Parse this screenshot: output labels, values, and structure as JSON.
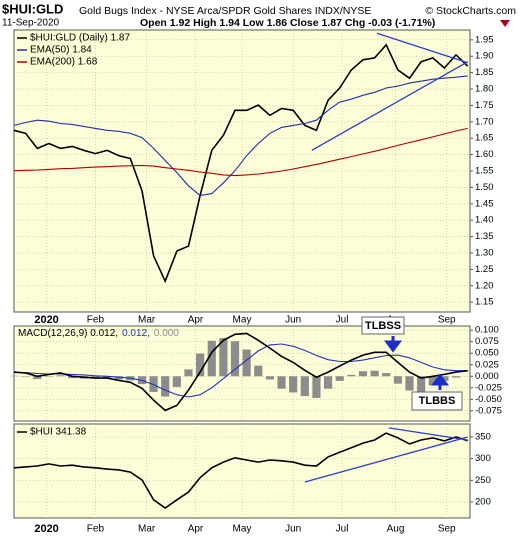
{
  "chart_data": [
    {
      "type": "line",
      "title": "$HUI:GLD",
      "subtitle": "Gold Bugs Index - NYSE Arca/SPDR Gold Shares INDX/NYSE",
      "source": "© StockCharts.com",
      "date": "11-Sep-2020",
      "quote": "Open 1.92 High 1.94 Low 1.86 Close 1.87 Chg -0.03 (-1.71%)",
      "x": [
        -14,
        -9,
        -4,
        1,
        6,
        11,
        16,
        21,
        26,
        31,
        36,
        41,
        46,
        51,
        56,
        61,
        66,
        71,
        76,
        81,
        86,
        91,
        96,
        101,
        106,
        111,
        116,
        121,
        126,
        131,
        136,
        141,
        146,
        151,
        156,
        161,
        166,
        171,
        176,
        181
      ],
      "xlim": [
        -14,
        182
      ],
      "ylim": [
        1.12,
        1.98
      ],
      "grid": true,
      "xticks": [
        {
          "value": 0,
          "label": "2020"
        },
        {
          "value": 21,
          "label": "Feb"
        },
        {
          "value": 43,
          "label": "Mar"
        },
        {
          "value": 64,
          "label": "Apr"
        },
        {
          "value": 84,
          "label": "May"
        },
        {
          "value": 106,
          "label": "Jun"
        },
        {
          "value": 127,
          "label": "Jul"
        },
        {
          "value": 150,
          "label": "Aug"
        },
        {
          "value": 172,
          "label": "Sep"
        }
      ],
      "yticks": [
        1.15,
        {
          "value": 1.2,
          "label": "1.20"
        },
        1.25,
        {
          "value": 1.3,
          "label": "1.30"
        },
        1.35,
        {
          "value": 1.4,
          "label": "1.40"
        },
        1.45,
        {
          "value": 1.5,
          "label": "1.50"
        },
        1.55,
        {
          "value": 1.6,
          "label": "1.60"
        },
        1.65,
        {
          "value": 1.7,
          "label": "1.70"
        },
        1.75,
        {
          "value": 1.8,
          "label": "1.80"
        },
        1.85,
        {
          "value": 1.9,
          "label": "1.90"
        },
        1.95
      ],
      "series": [
        {
          "name": "$HUI:GLD (Daily) 1.87",
          "color": "#000000",
          "values": [
            1.674,
            1.665,
            1.619,
            1.634,
            1.619,
            1.625,
            1.613,
            1.603,
            1.613,
            1.597,
            1.588,
            1.49,
            1.291,
            1.214,
            1.306,
            1.321,
            1.475,
            1.613,
            1.659,
            1.735,
            1.735,
            1.751,
            1.72,
            1.741,
            1.735,
            1.689,
            1.674,
            1.766,
            1.803,
            1.858,
            1.889,
            1.895,
            1.935,
            1.858,
            1.833,
            1.883,
            1.895,
            1.864,
            1.904,
            1.87
          ]
        },
        {
          "name": "EMA(50) 1.84",
          "color": "#1f2fa8",
          "values": [
            1.689,
            1.698,
            1.705,
            1.702,
            1.695,
            1.692,
            1.686,
            1.68,
            1.674,
            1.671,
            1.665,
            1.652,
            1.619,
            1.582,
            1.545,
            1.505,
            1.475,
            1.481,
            1.514,
            1.551,
            1.597,
            1.634,
            1.665,
            1.683,
            1.689,
            1.695,
            1.705,
            1.735,
            1.76,
            1.769,
            1.781,
            1.79,
            1.803,
            1.809,
            1.818,
            1.824,
            1.83,
            1.833,
            1.836,
            1.84
          ]
        },
        {
          "name": "EMA(200) 1.68",
          "color": "#b00000",
          "values": [
            1.551,
            1.552,
            1.553,
            1.555,
            1.557,
            1.558,
            1.56,
            1.562,
            1.563,
            1.565,
            1.566,
            1.567,
            1.565,
            1.56,
            1.556,
            1.552,
            1.547,
            1.543,
            1.538,
            1.536,
            1.538,
            1.541,
            1.545,
            1.55,
            1.556,
            1.563,
            1.57,
            1.578,
            1.586,
            1.594,
            1.602,
            1.61,
            1.619,
            1.628,
            1.637,
            1.645,
            1.654,
            1.663,
            1.672,
            1.68
          ]
        }
      ],
      "trendline_color": "#2a3fd0",
      "trendlines": [
        {
          "x": [
            142,
            181
          ],
          "y": [
            1.97,
            1.88
          ]
        },
        {
          "x": [
            114,
            181
          ],
          "y": [
            1.613,
            1.883
          ]
        }
      ]
    },
    {
      "type": "line",
      "x": [
        -14,
        -9,
        -4,
        1,
        6,
        11,
        16,
        21,
        26,
        31,
        36,
        41,
        46,
        51,
        56,
        61,
        66,
        71,
        76,
        81,
        86,
        91,
        96,
        101,
        106,
        111,
        116,
        121,
        126,
        131,
        136,
        141,
        146,
        151,
        156,
        161,
        166,
        171,
        176,
        181
      ],
      "xlim": [
        -14,
        182
      ],
      "ylim": [
        -0.097,
        0.109
      ],
      "grid": true,
      "yticks": [
        {
          "value": 0.1,
          "label": "0.100"
        },
        {
          "value": 0.075,
          "label": "0.075"
        },
        {
          "value": 0.05,
          "label": "0.050"
        },
        {
          "value": 0.025,
          "label": "0.025"
        },
        {
          "value": 0,
          "label": "0.000"
        },
        {
          "value": -0.025,
          "label": "-0.025"
        },
        {
          "value": -0.05,
          "label": "-0.050"
        },
        {
          "value": -0.075,
          "label": "-0.075"
        }
      ],
      "series": [
        {
          "name": "0.000",
          "type": "bar",
          "color": "#8c8c8c",
          "values": [
            0.001,
            -0.001,
            -0.006,
            -0.001,
            0.002,
            -0.004,
            -0.005,
            -0.005,
            -0.004,
            -0.007,
            -0.009,
            -0.017,
            -0.034,
            -0.044,
            -0.023,
            0.015,
            0.049,
            0.077,
            0.083,
            0.076,
            0.058,
            0.023,
            -0.007,
            -0.027,
            -0.035,
            -0.043,
            -0.047,
            -0.027,
            -0.01,
            0.003,
            0.011,
            0.012,
            0.007,
            -0.016,
            -0.031,
            -0.034,
            -0.02,
            -0.01,
            -0.003,
            0
          ]
        },
        {
          "name": "0.012,",
          "color": "#2233bb",
          "values": [
            0.008,
            0.008,
            0.006,
            0.005,
            0.005,
            0.004,
            0.003,
            0.001,
            0,
            -0.002,
            -0.004,
            -0.009,
            -0.018,
            -0.03,
            -0.04,
            -0.045,
            -0.04,
            -0.025,
            -0.005,
            0.015,
            0.035,
            0.055,
            0.068,
            0.07,
            0.065,
            0.056,
            0.045,
            0.036,
            0.032,
            0.032,
            0.035,
            0.04,
            0.045,
            0.046,
            0.04,
            0.03,
            0.02,
            0.014,
            0.012,
            0.012
          ]
        },
        {
          "name": "MACD(12,26,9) 0.012,",
          "color": "#000000",
          "values": [
            0.009,
            0.007,
            0,
            0.004,
            0.007,
            0,
            -0.002,
            -0.004,
            -0.004,
            -0.009,
            -0.013,
            -0.026,
            -0.052,
            -0.074,
            -0.063,
            -0.03,
            0.009,
            0.052,
            0.078,
            0.091,
            0.093,
            0.078,
            0.061,
            0.043,
            0.03,
            0.013,
            -0.002,
            0.009,
            0.022,
            0.035,
            0.046,
            0.052,
            0.052,
            0.03,
            0.009,
            -0.004,
            0,
            0.004,
            0.009,
            0.012
          ]
        }
      ],
      "legend_order": [
        2,
        1,
        0
      ],
      "annotations": [
        {
          "text": "TLBSS"
        },
        {
          "text": "TLBBS"
        }
      ]
    },
    {
      "type": "line",
      "x": [
        -14,
        -9,
        -4,
        1,
        6,
        11,
        16,
        21,
        26,
        31,
        36,
        41,
        46,
        51,
        56,
        61,
        66,
        71,
        76,
        81,
        86,
        91,
        96,
        101,
        106,
        111,
        116,
        121,
        126,
        131,
        136,
        141,
        146,
        151,
        156,
        161,
        166,
        171,
        176,
        181
      ],
      "xlim": [
        -14,
        182
      ],
      "ylim": [
        163,
        380
      ],
      "grid": true,
      "xticks": [
        {
          "value": 0,
          "label": "2020"
        },
        {
          "value": 21,
          "label": "Feb"
        },
        {
          "value": 43,
          "label": "Mar"
        },
        {
          "value": 64,
          "label": "Apr"
        },
        {
          "value": 84,
          "label": "May"
        },
        {
          "value": 106,
          "label": "Jun"
        },
        {
          "value": 127,
          "label": "Jul"
        },
        {
          "value": 150,
          "label": "Aug"
        },
        {
          "value": 172,
          "label": "Sep"
        }
      ],
      "yticks": [
        200,
        250,
        300,
        350
      ],
      "series": [
        {
          "name": "$HUI 341.38",
          "color": "#000000",
          "values": [
            279,
            281,
            283,
            288,
            283,
            285,
            281,
            279,
            276,
            274,
            269,
            251,
            205,
            186,
            205,
            223,
            256,
            279,
            292,
            302,
            297,
            292,
            297,
            295,
            292,
            285,
            283,
            304,
            315,
            325,
            336,
            343,
            359,
            348,
            334,
            343,
            348,
            341,
            350,
            341.38
          ]
        }
      ],
      "trendline_color": "#2a3fd0",
      "trendlines": [
        {
          "x": [
            147,
            181
          ],
          "y": [
            371,
            343
          ]
        },
        {
          "x": [
            111,
            181
          ],
          "y": [
            246,
            350
          ]
        }
      ]
    }
  ]
}
